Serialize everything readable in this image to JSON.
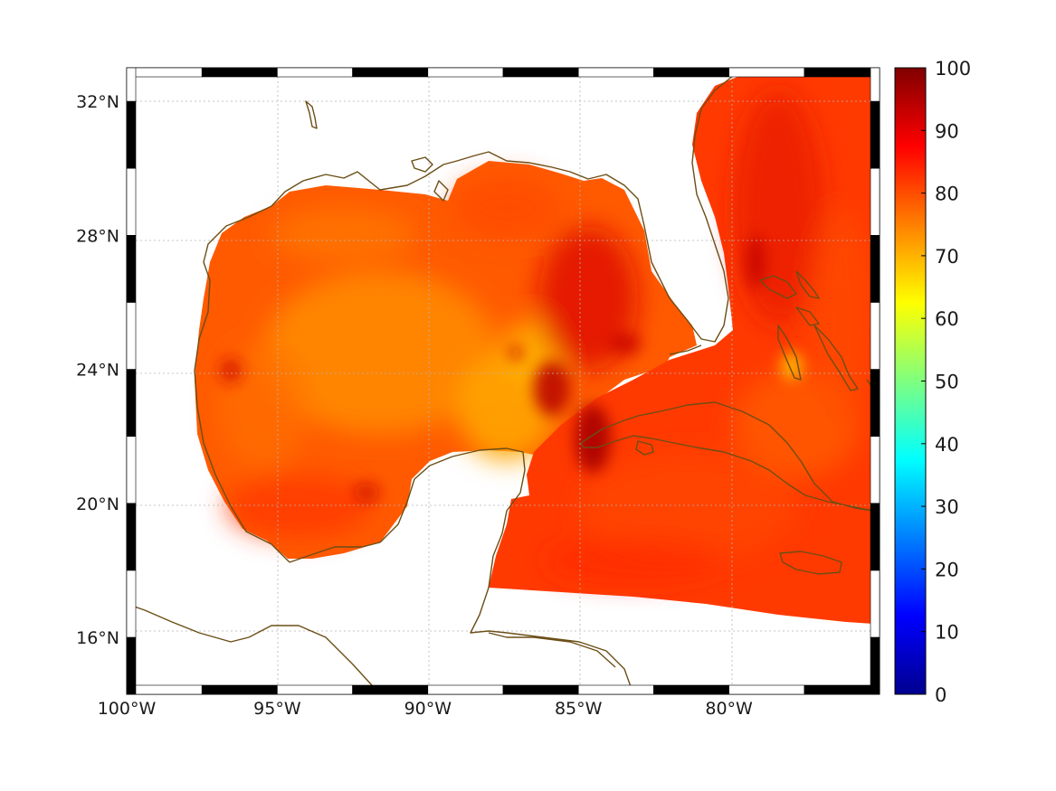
{
  "map": {
    "lon_ticks": [
      {
        "value": -100,
        "label": "100°W"
      },
      {
        "value": -95,
        "label": "95°W"
      },
      {
        "value": -90,
        "label": "90°W"
      },
      {
        "value": -85,
        "label": "85°W"
      },
      {
        "value": -80,
        "label": "80°W"
      }
    ],
    "lat_ticks": [
      {
        "value": 16,
        "label": "16°N"
      },
      {
        "value": 20,
        "label": "20°N"
      },
      {
        "value": 24,
        "label": "24°N"
      },
      {
        "value": 28,
        "label": "28°N"
      },
      {
        "value": 32,
        "label": "32°N"
      }
    ],
    "lon_range": [
      -100,
      -75
    ],
    "lat_range": [
      14.3,
      33
    ],
    "grid": true,
    "frame_style": "black-white-ticked",
    "coastline_color": "#6b4e16",
    "ocean_field_colors": [
      "#ff6a00",
      "#ff3a00",
      "#ffa000",
      "#b80000"
    ]
  },
  "colorbar": {
    "range": [
      0,
      100
    ],
    "ticks": [
      0,
      10,
      20,
      30,
      40,
      50,
      60,
      70,
      80,
      90,
      100
    ],
    "tick_labels": [
      "0",
      "10",
      "20",
      "30",
      "40",
      "50",
      "60",
      "70",
      "80",
      "90",
      "100"
    ],
    "colormap": "jet",
    "colormap_stops": [
      "#00008f",
      "#0000ff",
      "#00ffff",
      "#ffff00",
      "#ff0000",
      "#800000"
    ]
  }
}
